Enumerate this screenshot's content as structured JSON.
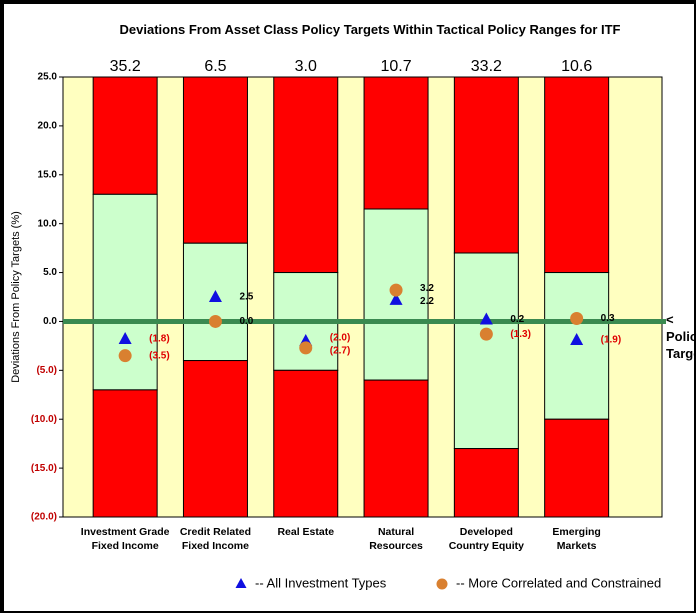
{
  "chart_data": {
    "type": "range-bar",
    "title": "Deviations From Asset Class Policy Targets Within Tactical Policy Ranges for ITF",
    "y_label": "Deviations From Policy Targets (%)",
    "categories": [
      "Investment Grade\nFixed Income",
      "Credit Related\nFixed Income",
      "Real Estate",
      "Natural\nResources",
      "Developed\nCountry Equity",
      "Emerging\nMarkets"
    ],
    "top_labels": [
      "35.2",
      "6.5",
      "3.0",
      "10.7",
      "33.2",
      "10.6"
    ],
    "ranges": {
      "lower": [
        -7,
        -4,
        -5,
        -6,
        -13,
        -10
      ],
      "upper": [
        13,
        8,
        5,
        11.5,
        7,
        5
      ],
      "inner_color": "#ccffcc",
      "outer_color": "#ff0000"
    },
    "series": [
      {
        "name": "-- All Investment Types",
        "marker": "triangle",
        "color": "#1010e0",
        "values": [
          -1.8,
          2.5,
          -2.0,
          2.2,
          0.2,
          -1.9
        ],
        "value_labels": [
          "(1.8)",
          "2.5",
          "(2.0)",
          "2.2",
          "0.2",
          "(1.9)"
        ]
      },
      {
        "name": "-- More Correlated and Constrained",
        "marker": "circle",
        "color": "#d98030",
        "values": [
          -3.5,
          0.0,
          -2.7,
          3.2,
          -1.3,
          0.3
        ],
        "value_labels": [
          "(3.5)",
          "0.0",
          "(2.7)",
          "3.2",
          "(1.3)",
          "0.3"
        ]
      }
    ],
    "policy_target": {
      "value": 0,
      "label": "< Policy\nTarget",
      "color": "#3a8a50"
    },
    "ylim": [
      -20,
      25
    ],
    "yticks": [
      {
        "value": -20,
        "label": "(20.0)"
      },
      {
        "value": -15,
        "label": "(15.0)"
      },
      {
        "value": -10,
        "label": "(10.0)"
      },
      {
        "value": -5,
        "label": "(5.0)"
      },
      {
        "value": 0,
        "label": "0.0"
      },
      {
        "value": 5,
        "label": "5.0"
      },
      {
        "value": 10,
        "label": "10.0"
      },
      {
        "value": 15,
        "label": "15.0"
      },
      {
        "value": 20,
        "label": "20.0"
      },
      {
        "value": 25,
        "label": "25.0"
      }
    ],
    "background": "#ffffc0",
    "legend": "bottom"
  }
}
